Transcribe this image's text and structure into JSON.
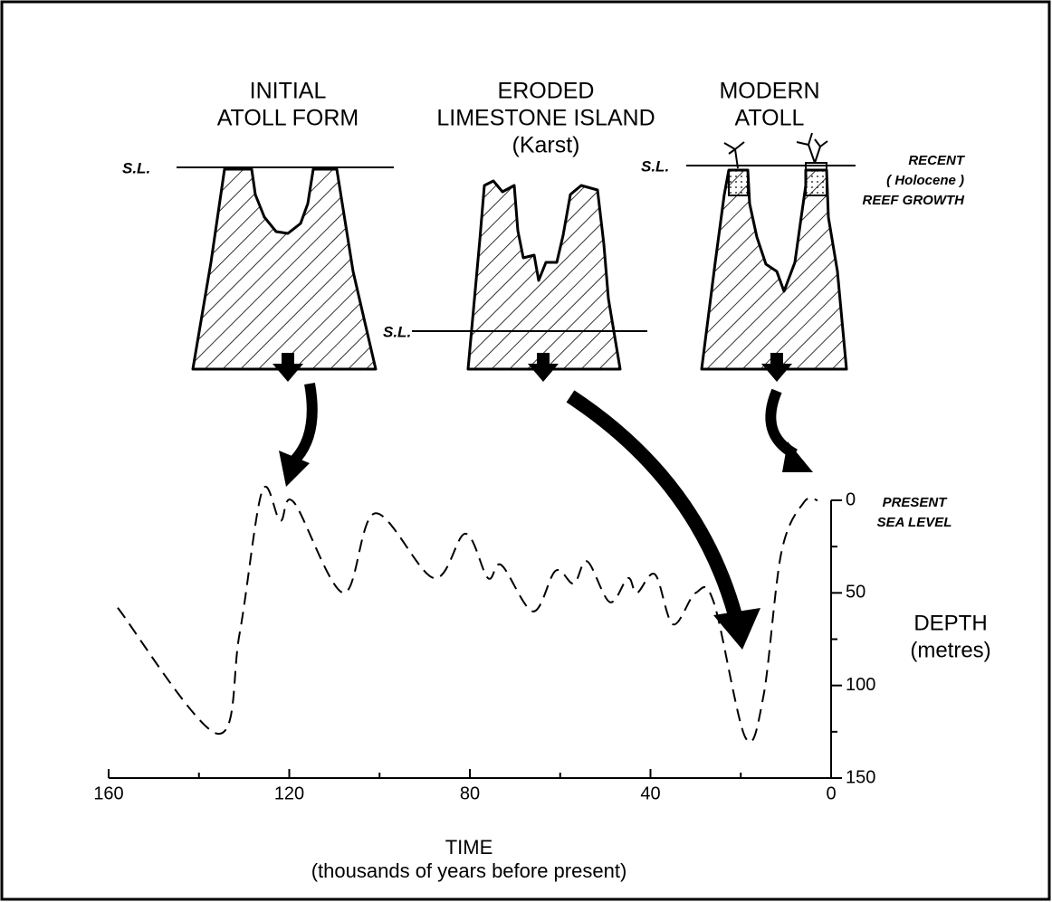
{
  "chart_data": {
    "type": "line",
    "x": [
      158,
      136,
      131,
      126,
      122,
      119,
      108,
      101,
      88,
      81,
      76,
      73,
      66,
      61,
      57,
      54,
      49,
      45,
      43,
      39,
      35,
      30,
      26,
      19,
      15,
      11,
      6,
      3
    ],
    "values": [
      58,
      126,
      72,
      -5,
      11,
      1,
      50,
      7,
      42,
      18,
      42,
      35,
      60,
      38,
      45,
      33,
      55,
      42,
      50,
      40,
      67,
      50,
      55,
      128,
      106,
      28,
      1,
      0
    ],
    "color": "#000000",
    "dashed": true,
    "xlim": [
      160,
      0
    ],
    "ylim": [
      0,
      150
    ],
    "xticks": [
      160,
      120,
      80,
      40,
      0
    ],
    "yticks": [
      0,
      50,
      100,
      150
    ],
    "xticks_minor": [
      140,
      100,
      60,
      20
    ],
    "yticks_minor": [
      25,
      75,
      125
    ],
    "x_label": "TIME",
    "x_label_sub": "(thousands of years before present)",
    "y_label": "DEPTH",
    "y_label_sub": "(metres)",
    "annotation": [
      "PRESENT",
      "SEA LEVEL"
    ]
  },
  "stages": [
    {
      "title": [
        "INITIAL",
        "ATOLL FORM"
      ]
    },
    {
      "title": [
        "ERODED",
        "LIMESTONE ISLAND",
        "(Karst)"
      ]
    },
    {
      "title": [
        "MODERN",
        "ATOLL"
      ]
    }
  ],
  "sea_level_label": "S.L.",
  "reef_note": [
    "RECENT",
    "( Holocene )",
    "REEF GROWTH"
  ]
}
